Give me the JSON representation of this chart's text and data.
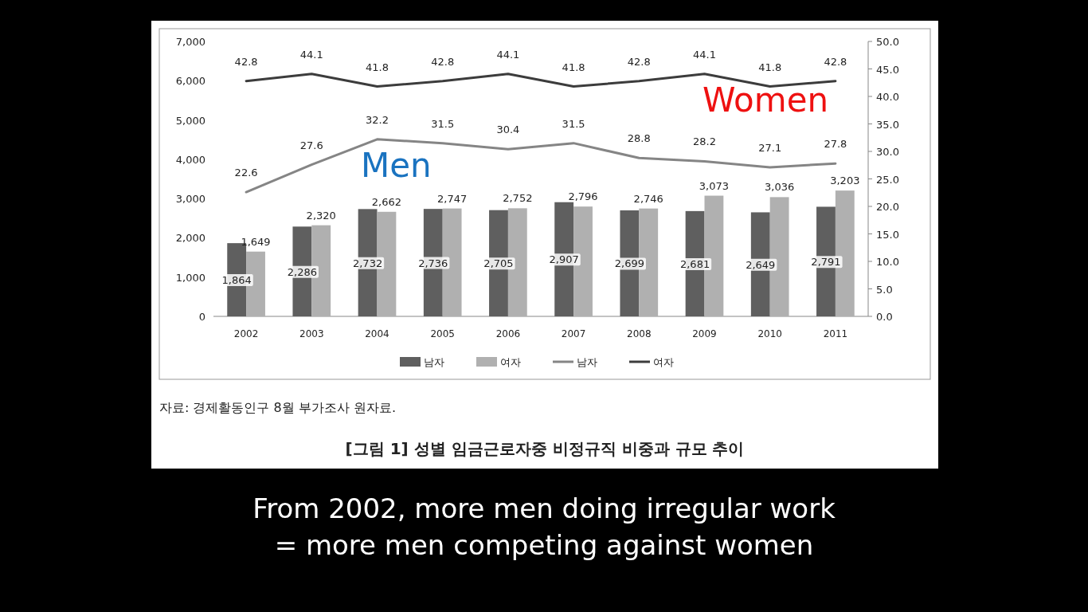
{
  "chart_data": {
    "type": "bar",
    "title": "[그림 1] 성별 임금근로자중 비정규직 비중과 규모 추이",
    "categories": [
      "2002",
      "2003",
      "2004",
      "2005",
      "2006",
      "2007",
      "2008",
      "2009",
      "2010",
      "2011"
    ],
    "series": [
      {
        "name": "남자",
        "color": "#5f5f5f",
        "values": [
          1864,
          2286,
          2732,
          2736,
          2705,
          2907,
          2699,
          2681,
          2649,
          2791
        ],
        "value_labels": [
          "1,864",
          "2,286",
          "2,732",
          "2,736",
          "2,705",
          "2,907",
          "2,699",
          "2,681",
          "2,649",
          "2,791"
        ]
      },
      {
        "name": "여자",
        "color": "#b0b0b0",
        "values": [
          1649,
          2320,
          2662,
          2747,
          2752,
          2796,
          2746,
          3073,
          3036,
          3203
        ],
        "value_labels": [
          "1,649",
          "2,320",
          "2,662",
          "2,747",
          "2,752",
          "2,796",
          "2,746",
          "3,073",
          "3,036",
          "3,203"
        ]
      },
      {
        "name": "남자",
        "type": "line",
        "axis": "y2",
        "color": "#858585",
        "values": [
          22.6,
          27.6,
          32.2,
          31.5,
          30.4,
          31.5,
          28.8,
          28.2,
          27.1,
          27.8
        ],
        "value_labels": [
          "22.6",
          "27.6",
          "32.2",
          "31.5",
          "30.4",
          "31.5",
          "28.8",
          "28.2",
          "27.1",
          "27.8"
        ]
      },
      {
        "name": "여자",
        "type": "line",
        "axis": "y2",
        "color": "#3c3c3c",
        "values": [
          42.8,
          44.1,
          41.8,
          42.8,
          44.1,
          41.8,
          42.8,
          44.1,
          41.8,
          42.8
        ],
        "value_labels": [
          "42.8",
          "44.1",
          "41.8",
          "42.8",
          "44.1",
          "41.8",
          "42.8",
          "44.1",
          "41.8",
          "42.8"
        ]
      }
    ],
    "ylim": [
      0,
      7000
    ],
    "yticks": [
      0,
      {
        "value": 1000,
        "label": "1,000"
      },
      {
        "value": 2000,
        "label": "2,000"
      },
      {
        "value": 3000,
        "label": "3,000"
      },
      {
        "value": 4000,
        "label": "4,000"
      },
      {
        "value": 5000,
        "label": "5,000"
      },
      {
        "value": 6000,
        "label": "6,000"
      },
      {
        "value": 7000,
        "label": "7,000"
      }
    ],
    "y2lim": [
      0,
      50
    ],
    "y2ticks": [
      {
        "value": 0,
        "label": "0.0"
      },
      {
        "value": 5,
        "label": "5.0"
      },
      {
        "value": 10,
        "label": "10.0"
      },
      {
        "value": 15,
        "label": "15.0"
      },
      {
        "value": 20,
        "label": "20.0"
      },
      {
        "value": 25,
        "label": "25.0"
      },
      {
        "value": 30,
        "label": "30.0"
      },
      {
        "value": 35,
        "label": "35.0"
      },
      {
        "value": 40,
        "label": "40.0"
      },
      {
        "value": 45,
        "label": "45.0"
      },
      {
        "value": 50,
        "label": "50.0"
      }
    ],
    "grid": false,
    "legend": "bottom",
    "annotations": [
      "Men",
      "Women",
      "자료: 경제활동인구 8월 부가조사 원자료.",
      "From 2002, more men doing irregular work = more men competing against women"
    ]
  }
}
